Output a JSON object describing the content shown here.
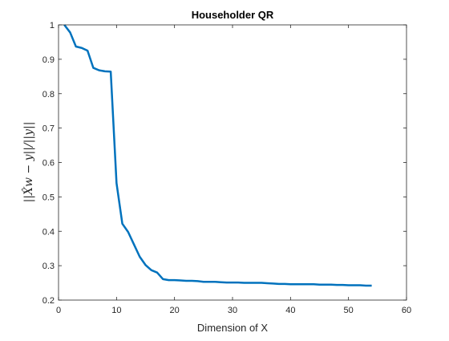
{
  "chart_data": {
    "type": "line",
    "title": "Householder QR",
    "xlabel": "Dimension of X",
    "ylabel": "||X̂w − y||/||y||",
    "xlim": [
      0,
      60
    ],
    "ylim": [
      0.2,
      1.0
    ],
    "xticks": [
      0,
      10,
      20,
      30,
      40,
      50,
      60
    ],
    "yticks": [
      0.2,
      0.3,
      0.4,
      0.5,
      0.6,
      0.7,
      0.8,
      0.9,
      1.0
    ],
    "xtick_labels": [
      "0",
      "10",
      "20",
      "30",
      "40",
      "50",
      "60"
    ],
    "ytick_labels": [
      "0.2",
      "0.3",
      "0.4",
      "0.5",
      "0.6",
      "0.7",
      "0.8",
      "0.9",
      "1"
    ],
    "grid": false,
    "line_color": "#0072BD",
    "series": [
      {
        "x": [
          1,
          2,
          3,
          4,
          5,
          6,
          7,
          8,
          9,
          10,
          11,
          12,
          13,
          14,
          15,
          16,
          17,
          18,
          19,
          20,
          21,
          22,
          23,
          24,
          25,
          26,
          27,
          28,
          29,
          30,
          31,
          32,
          33,
          34,
          35,
          36,
          37,
          38,
          39,
          40,
          41,
          42,
          43,
          44,
          45,
          46,
          47,
          48,
          49,
          50,
          51,
          52,
          53,
          54
        ],
        "y": [
          1.0,
          0.978,
          0.937,
          0.933,
          0.925,
          0.875,
          0.868,
          0.865,
          0.864,
          0.54,
          0.422,
          0.398,
          0.362,
          0.326,
          0.302,
          0.287,
          0.28,
          0.261,
          0.258,
          0.258,
          0.257,
          0.256,
          0.256,
          0.255,
          0.253,
          0.253,
          0.253,
          0.252,
          0.251,
          0.251,
          0.251,
          0.25,
          0.25,
          0.25,
          0.25,
          0.249,
          0.248,
          0.247,
          0.247,
          0.246,
          0.246,
          0.246,
          0.246,
          0.246,
          0.245,
          0.245,
          0.245,
          0.244,
          0.244,
          0.243,
          0.243,
          0.243,
          0.242,
          0.242
        ]
      }
    ]
  }
}
